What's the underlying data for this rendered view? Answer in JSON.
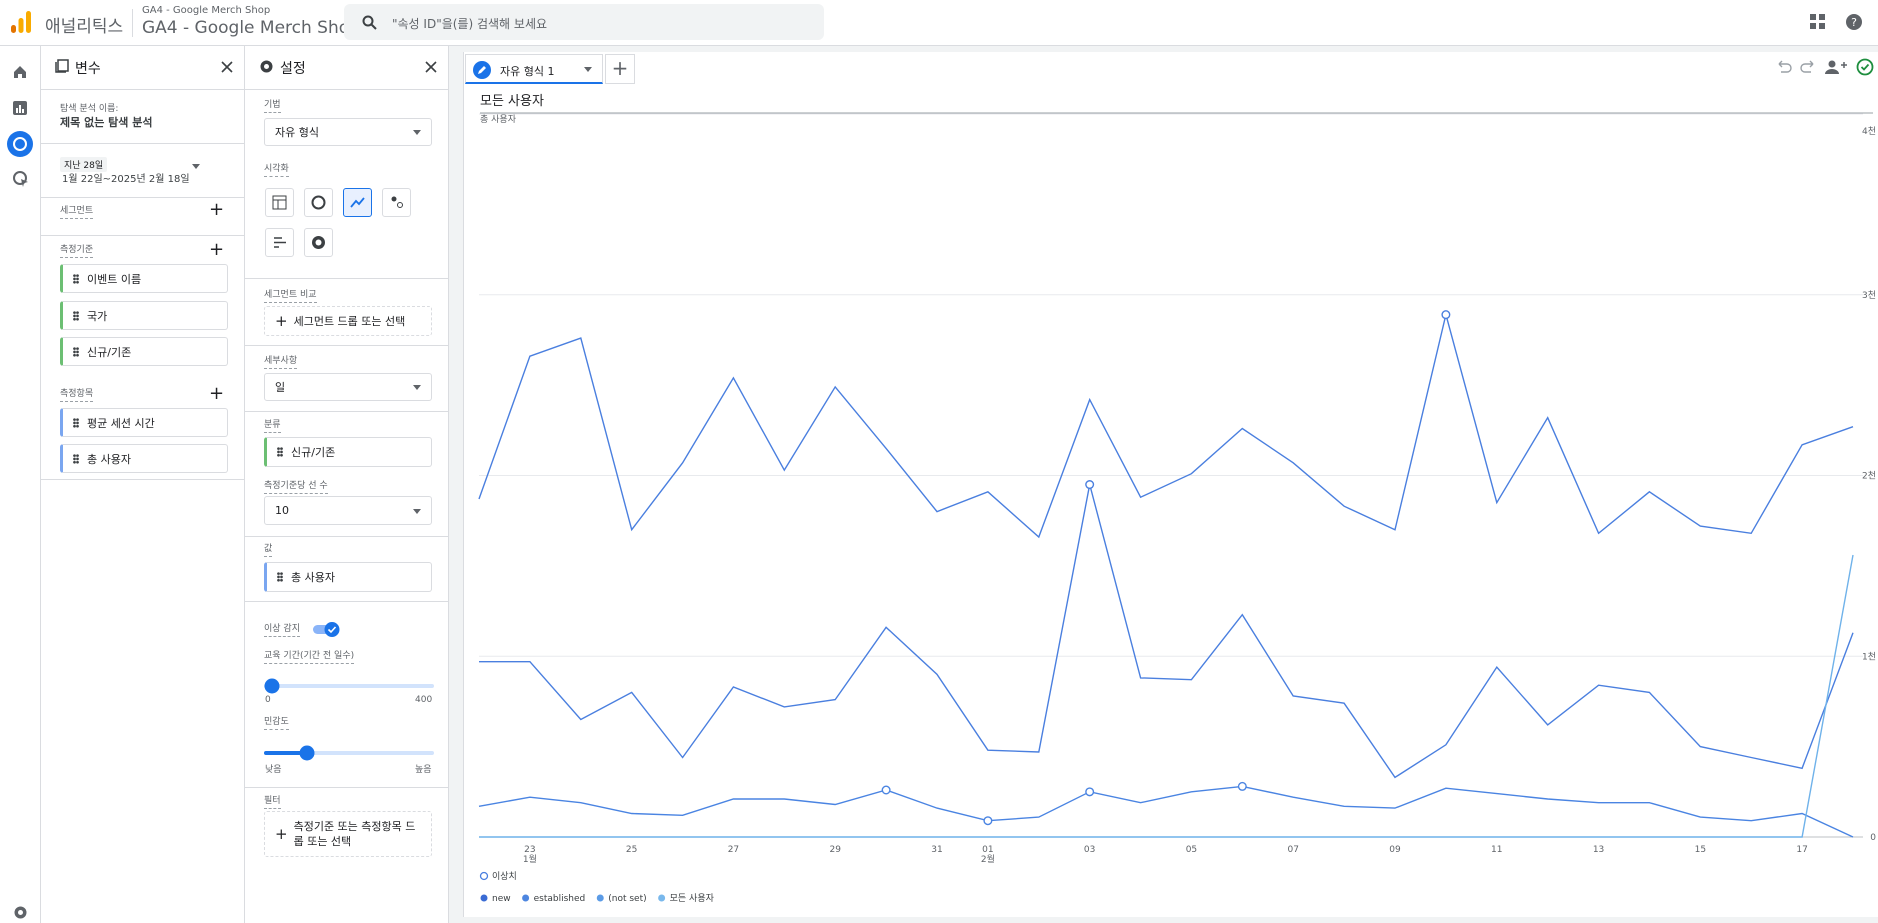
{
  "header": {
    "app": "애널리틱스",
    "account": "GA4 - Google Merch Shop",
    "property": "GA4 - Google Merch Shop",
    "search": "\"속성 ID\"을(를) 검색해 보세요"
  },
  "variables": {
    "title": "변수",
    "exploration_label": "탐색 분석 이름:",
    "exploration_name": "제목 없는 탐색 분석",
    "date_label": "지난 28일",
    "date_range": "1월 22일~2025년 2월 18일",
    "segments_label": "세그먼트",
    "dimensions_label": "측정기준",
    "dimensions": [
      "이벤트 이름",
      "국가",
      "신규/기존"
    ],
    "metrics_label": "측정항목",
    "metrics": [
      "평균 세션 시간",
      "총 사용자"
    ]
  },
  "settings": {
    "title": "설정",
    "technique_label": "기법",
    "technique": "자유 형식",
    "visualization_label": "시각화",
    "segment_compare_label": "세그먼트 비교",
    "segment_drop": "세그먼트 드롭 또는 선택",
    "granularity_label": "세부사항",
    "granularity": "일",
    "breakdown_label": "분류",
    "breakdown": "신규/기존",
    "rows_label": "측정기준당 선 수",
    "rows": "10",
    "values_label": "값",
    "value": "총 사용자",
    "anomaly_label": "이상 감지",
    "training_label": "교육 기간(기간 전 일수)",
    "training_min": "0",
    "training_max": "400",
    "sensitivity_label": "민감도",
    "sensitivity_low": "낮음",
    "sensitivity_high": "높음",
    "filters_label": "필터",
    "filter_drop": "측정기준 또는 측정항목 드롭 또는 선택"
  },
  "tab": "자유 형식 1",
  "chart_data": {
    "type": "line",
    "title": "모든 사용자",
    "y_label": "총 사용자",
    "anomaly_label": "이상치",
    "categories": [
      null,
      "23\n1월",
      null,
      "25",
      null,
      "27",
      null,
      "29",
      null,
      "31",
      "01\n2월",
      null,
      "03",
      null,
      "05",
      null,
      "07",
      null,
      "09",
      null,
      "11",
      null,
      "13",
      null,
      "15",
      null,
      "17",
      null
    ],
    "series": [
      {
        "name": "new",
        "color": "#4a7fdf",
        "legend_color": "#3a6bd4",
        "values": [
          1870,
          2660,
          2760,
          1700,
          2070,
          2540,
          2030,
          2490,
          2150,
          1800,
          1910,
          1660,
          2420,
          1880,
          2010,
          2260,
          2070,
          1830,
          1700,
          2890,
          1850,
          2320,
          1680,
          1910,
          1720,
          1680,
          2170,
          2270
        ],
        "anomalies": [
          19
        ]
      },
      {
        "name": "established",
        "color": "#4a7fdf",
        "legend_color": "#4d86e0",
        "values": [
          970,
          970,
          650,
          800,
          440,
          830,
          720,
          760,
          1160,
          900,
          480,
          470,
          1950,
          880,
          870,
          1230,
          780,
          740,
          330,
          510,
          940,
          620,
          840,
          800,
          500,
          440,
          380,
          1130
        ],
        "anomalies": [
          12
        ]
      },
      {
        "name": "(not set)",
        "color": "#4a84e2",
        "legend_color": "#5b9be6",
        "values": [
          170,
          220,
          190,
          130,
          120,
          210,
          210,
          180,
          260,
          160,
          90,
          110,
          250,
          190,
          250,
          280,
          220,
          170,
          160,
          270,
          240,
          210,
          190,
          190,
          110,
          90,
          130,
          0
        ],
        "anomalies": [
          8,
          10,
          12,
          15
        ]
      },
      {
        "name": "모든 사용자",
        "color": "#6fb2ea",
        "legend_color": "#79b8ec",
        "values": [
          0,
          0,
          0,
          0,
          0,
          0,
          0,
          0,
          0,
          0,
          0,
          0,
          0,
          0,
          0,
          0,
          0,
          0,
          0,
          0,
          0,
          0,
          0,
          0,
          0,
          0,
          0,
          1560
        ],
        "anomalies": []
      }
    ],
    "ylim": [
      0,
      4000
    ],
    "yticks": [
      0,
      {
        "value": 1000,
        "label": "1천"
      },
      {
        "value": 2000,
        "label": "2천"
      },
      {
        "value": 3000,
        "label": "3천"
      },
      {
        "value": 4000,
        "label": "4천"
      }
    ],
    "grid": true
  }
}
